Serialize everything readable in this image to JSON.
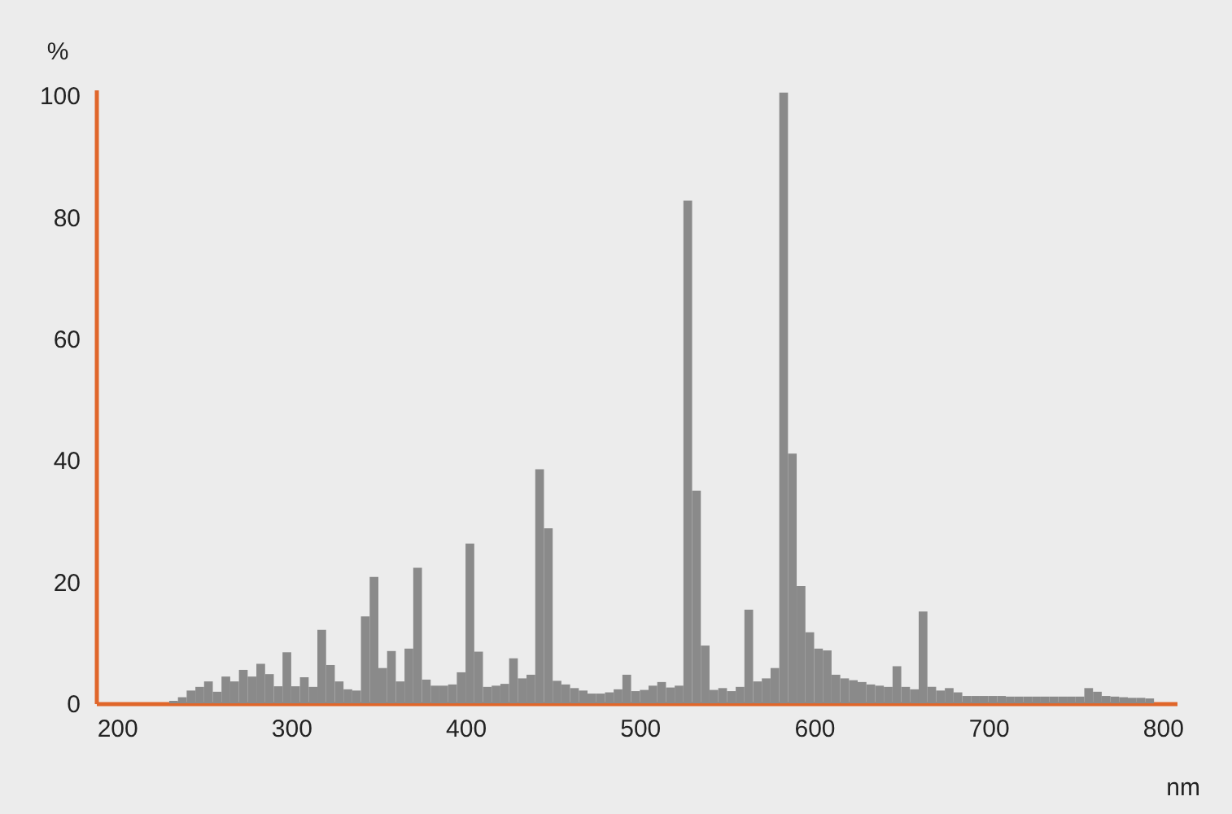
{
  "chart_data": {
    "type": "histogram",
    "xlabel": "nm",
    "ylabel": "%",
    "color": "#8a8a8a",
    "bins": [
      230,
      235,
      240,
      245,
      250,
      255,
      260,
      265,
      270,
      275,
      280,
      285,
      290,
      295,
      300,
      305,
      310,
      315,
      320,
      325,
      330,
      335,
      340,
      345,
      350,
      355,
      360,
      365,
      370,
      375,
      380,
      385,
      390,
      395,
      400,
      405,
      410,
      415,
      420,
      425,
      430,
      435,
      440,
      445,
      450,
      455,
      460,
      465,
      470,
      475,
      480,
      485,
      490,
      495,
      500,
      505,
      510,
      515,
      520,
      525,
      530,
      535,
      540,
      545,
      550,
      555,
      560,
      565,
      570,
      575,
      580,
      585,
      590,
      595,
      600,
      605,
      610,
      615,
      620,
      625,
      630,
      635,
      640,
      645,
      650,
      655,
      660,
      665,
      670,
      675,
      680,
      685,
      690,
      695,
      700,
      705,
      710,
      715,
      720,
      725,
      730,
      735,
      740,
      745,
      750,
      755,
      760,
      765,
      770,
      775,
      780,
      785,
      790,
      795
    ],
    "values": [
      0.4,
      1.0,
      2.1,
      2.7,
      3.6,
      1.9,
      4.4,
      3.6,
      5.5,
      4.4,
      6.5,
      4.8,
      2.8,
      8.4,
      2.8,
      4.3,
      2.7,
      12.1,
      6.3,
      3.6,
      2.3,
      2.1,
      14.3,
      20.8,
      5.8,
      8.6,
      3.6,
      9.0,
      22.3,
      3.9,
      2.9,
      2.9,
      3.1,
      5.1,
      26.3,
      8.5,
      2.7,
      2.9,
      3.2,
      7.4,
      4.1,
      4.7,
      38.5,
      28.8,
      3.7,
      3.1,
      2.5,
      2.1,
      1.6,
      1.6,
      1.8,
      2.3,
      4.7,
      2.0,
      2.2,
      2.9,
      3.5,
      2.6,
      2.9,
      82.7,
      35.0,
      9.5,
      2.2,
      2.5,
      2.0,
      2.7,
      15.4,
      3.6,
      4.1,
      5.8,
      100.5,
      41.1,
      19.3,
      11.7,
      9.0,
      8.7,
      4.7,
      4.1,
      3.8,
      3.5,
      3.1,
      2.9,
      2.7,
      6.1,
      2.7,
      2.3,
      15.1,
      2.7,
      2.1,
      2.5,
      1.8,
      1.2,
      1.2,
      1.2,
      1.2,
      1.2,
      1.1,
      1.1,
      1.1,
      1.1,
      1.1,
      1.1,
      1.1,
      1.1,
      1.1,
      2.5,
      1.9,
      1.2,
      1.1,
      1.0,
      0.9,
      0.9,
      0.8
    ],
    "xlim": [
      188,
      808
    ],
    "ylim": [
      0,
      101
    ],
    "xticks": [
      200,
      300,
      400,
      500,
      600,
      700,
      800
    ],
    "yticks": [
      0,
      20,
      40,
      60,
      80,
      100
    ],
    "grid": false
  }
}
